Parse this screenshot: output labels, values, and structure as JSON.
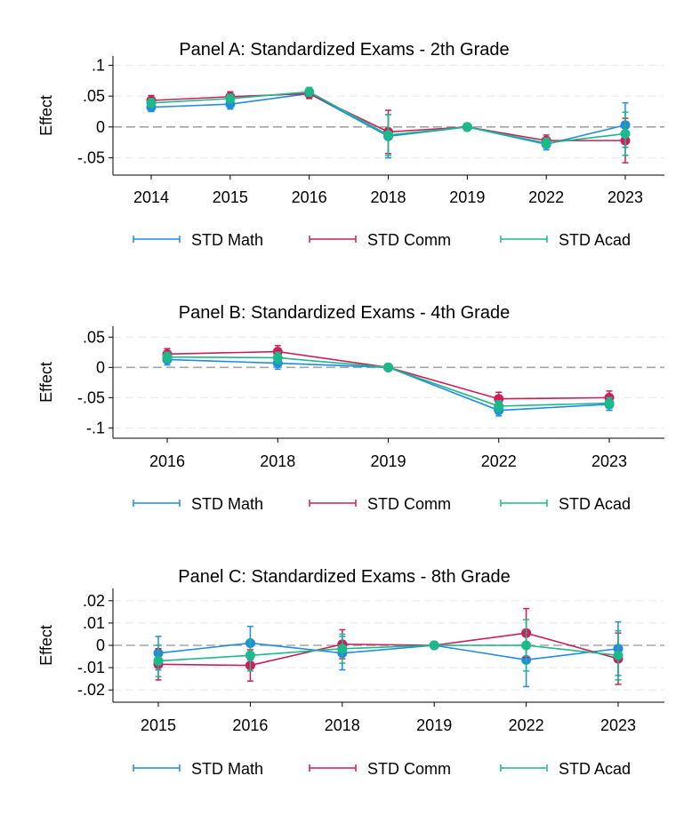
{
  "chart_data": [
    {
      "type": "line",
      "title": "Panel A: Standardized Exams - 2th Grade",
      "ylabel": "Effect",
      "categories": [
        "2014",
        "2015",
        "2016",
        "2018",
        "2019",
        "2022",
        "2023"
      ],
      "yticks": [
        -0.05,
        0,
        0.05,
        0.1
      ],
      "ytick_labels": [
        "-.05",
        "0",
        ".05",
        ".1"
      ],
      "ylim": [
        -0.078,
        0.115
      ],
      "reference_line": 0,
      "grid": true,
      "legend": "bottom",
      "series": [
        {
          "name": "STD Math",
          "color": "#1f8ce0",
          "values": [
            0.032,
            0.037,
            0.054,
            -0.015,
            0,
            -0.028,
            0.003
          ],
          "lower": [
            0.025,
            0.029,
            0.047,
            -0.05,
            0,
            -0.037,
            -0.033
          ],
          "upper": [
            0.039,
            0.045,
            0.061,
            0.02,
            0,
            -0.019,
            0.039
          ]
        },
        {
          "name": "STD Comm",
          "color": "#cc1f5a",
          "values": [
            0.043,
            0.049,
            0.054,
            -0.008,
            0,
            -0.022,
            -0.022
          ],
          "lower": [
            0.035,
            0.041,
            0.046,
            -0.043,
            0,
            -0.031,
            -0.058
          ],
          "upper": [
            0.051,
            0.057,
            0.062,
            0.027,
            0,
            -0.013,
            0.014
          ]
        },
        {
          "name": "STD Acad",
          "color": "#1cb98a",
          "values": [
            0.039,
            0.046,
            0.057,
            -0.013,
            0,
            -0.026,
            -0.011
          ],
          "lower": [
            0.032,
            0.039,
            0.05,
            -0.046,
            0,
            -0.034,
            -0.046
          ],
          "upper": [
            0.046,
            0.053,
            0.064,
            0.02,
            0,
            -0.018,
            0.024
          ]
        }
      ]
    },
    {
      "type": "line",
      "title": "Panel B: Standardized Exams - 4th Grade",
      "ylabel": "Effect",
      "categories": [
        "2016",
        "2018",
        "2019",
        "2022",
        "2023"
      ],
      "yticks": [
        -0.1,
        -0.05,
        0,
        0.05
      ],
      "ytick_labels": [
        "-.1",
        "-.05",
        "0",
        ".05"
      ],
      "ylim": [
        -0.117,
        0.068
      ],
      "reference_line": 0,
      "grid": true,
      "legend": "bottom",
      "series": [
        {
          "name": "STD Math",
          "color": "#1f8ce0",
          "values": [
            0.013,
            0.007,
            0,
            -0.071,
            -0.061
          ],
          "lower": [
            0.004,
            -0.003,
            0,
            -0.08,
            -0.071
          ],
          "upper": [
            0.022,
            0.017,
            0,
            -0.062,
            -0.051
          ]
        },
        {
          "name": "STD Comm",
          "color": "#cc1f5a",
          "values": [
            0.022,
            0.026,
            0,
            -0.052,
            -0.05
          ],
          "lower": [
            0.013,
            0.016,
            0,
            -0.063,
            -0.061
          ],
          "upper": [
            0.031,
            0.036,
            0,
            -0.041,
            -0.039
          ]
        },
        {
          "name": "STD Acad",
          "color": "#1cb98a",
          "values": [
            0.017,
            0.016,
            0,
            -0.064,
            -0.059
          ],
          "lower": [
            0.009,
            0.007,
            0,
            -0.073,
            -0.068
          ],
          "upper": [
            0.025,
            0.025,
            0,
            -0.055,
            -0.05
          ]
        }
      ]
    },
    {
      "type": "line",
      "title": "Panel C: Standardized Exams - 8th Grade",
      "ylabel": "Effect",
      "categories": [
        "2015",
        "2016",
        "2018",
        "2019",
        "2022",
        "2023"
      ],
      "yticks": [
        -0.02,
        -0.01,
        0,
        0.01,
        0.02
      ],
      "ytick_labels": [
        "-.02",
        "-.01",
        "0",
        ".01",
        ".02"
      ],
      "ylim": [
        -0.0255,
        0.0255
      ],
      "reference_line": 0,
      "grid": true,
      "legend": "bottom",
      "series": [
        {
          "name": "STD Math",
          "color": "#1f8ce0",
          "values": [
            -0.0035,
            0.001,
            -0.0035,
            0,
            -0.0065,
            -0.0015
          ],
          "lower": [
            -0.011,
            -0.0065,
            -0.011,
            0,
            -0.0185,
            -0.0135
          ],
          "upper": [
            0.004,
            0.0085,
            0.004,
            0,
            0.0055,
            0.0105
          ]
        },
        {
          "name": "STD Comm",
          "color": "#cc1f5a",
          "values": [
            -0.0085,
            -0.009,
            0.0005,
            0,
            0.0055,
            -0.006
          ],
          "lower": [
            -0.0155,
            -0.016,
            -0.006,
            0,
            -0.0055,
            -0.0175
          ],
          "upper": [
            -0.0015,
            -0.002,
            0.007,
            0,
            0.0165,
            0.0055
          ]
        },
        {
          "name": "STD Acad",
          "color": "#1cb98a",
          "values": [
            -0.007,
            -0.0045,
            -0.0015,
            0,
            0,
            -0.0045
          ],
          "lower": [
            -0.014,
            -0.0115,
            -0.008,
            0,
            -0.0115,
            -0.0155
          ],
          "upper": [
            0,
            0.0025,
            0.005,
            0,
            0.0115,
            0.0065
          ]
        }
      ]
    }
  ]
}
